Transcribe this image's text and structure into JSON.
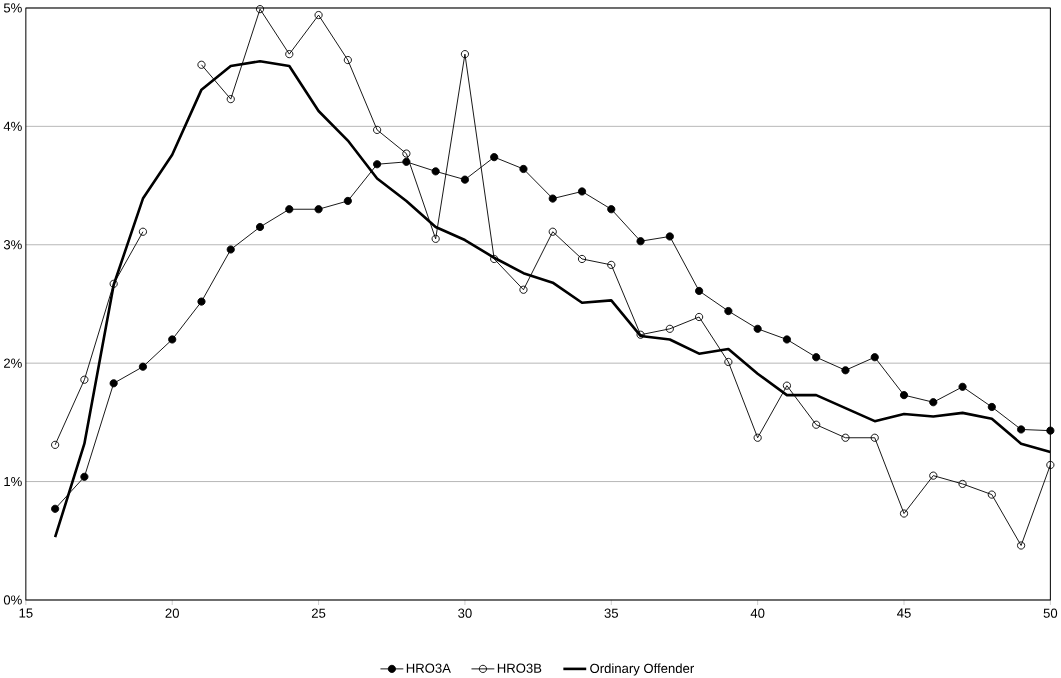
{
  "chart_data": {
    "type": "line",
    "x": [
      16,
      17,
      18,
      19,
      20,
      21,
      22,
      23,
      24,
      25,
      26,
      27,
      28,
      29,
      30,
      31,
      32,
      33,
      34,
      35,
      36,
      37,
      38,
      39,
      40,
      41,
      42,
      43,
      44,
      45,
      46,
      47,
      48,
      49,
      50
    ],
    "series": [
      {
        "name": "HRO3A",
        "color": "#000000",
        "marker": "circle",
        "values": [
          0.77,
          1.04,
          1.83,
          1.97,
          2.2,
          2.52,
          2.96,
          3.15,
          3.3,
          3.3,
          3.37,
          3.68,
          3.7,
          3.62,
          3.55,
          3.74,
          3.64,
          3.39,
          3.45,
          3.3,
          3.03,
          3.07,
          2.61,
          2.44,
          2.29,
          2.2,
          2.05,
          1.94,
          2.05,
          1.73,
          1.67,
          1.8,
          1.63,
          1.44,
          1.43
        ]
      },
      {
        "name": "HRO3B",
        "color": "#000000",
        "marker": "circle_open",
        "values": [
          1.31,
          1.86,
          2.67,
          3.11,
          null,
          4.52,
          4.23,
          4.99,
          4.61,
          4.94,
          4.56,
          3.97,
          3.77,
          3.05,
          4.61,
          2.88,
          2.62,
          3.11,
          2.88,
          2.83,
          2.24,
          2.29,
          2.39,
          2.01,
          1.37,
          1.81,
          1.48,
          1.37,
          1.37,
          0.73,
          1.05,
          0.98,
          0.89,
          0.46,
          1.14
        ]
      },
      {
        "name": "Ordinary Offender",
        "color": "#000000",
        "marker": "none",
        "values": [
          0.53,
          1.32,
          2.66,
          3.39,
          3.76,
          4.31,
          4.51,
          4.55,
          4.51,
          4.13,
          3.88,
          3.56,
          3.37,
          3.15,
          3.04,
          2.89,
          2.76,
          2.68,
          2.51,
          2.53,
          2.23,
          2.2,
          2.08,
          2.12,
          1.91,
          1.73,
          1.73,
          1.62,
          1.51,
          1.57,
          1.55,
          1.58,
          1.53,
          1.32,
          1.25
        ]
      }
    ],
    "xlim": [
      15,
      50
    ],
    "ylim": [
      0,
      5
    ],
    "xticks": [
      15,
      20,
      25,
      30,
      35,
      40,
      45,
      50
    ],
    "yticks": [
      {
        "value": 0,
        "label": "0%"
      },
      {
        "value": 1,
        "label": "1%"
      },
      {
        "value": 2,
        "label": "2%"
      },
      {
        "value": 3,
        "label": "3%"
      },
      {
        "value": 4,
        "label": "4%"
      },
      {
        "value": 5,
        "label": "5%"
      }
    ],
    "grid": "y",
    "legend": "bottom"
  }
}
